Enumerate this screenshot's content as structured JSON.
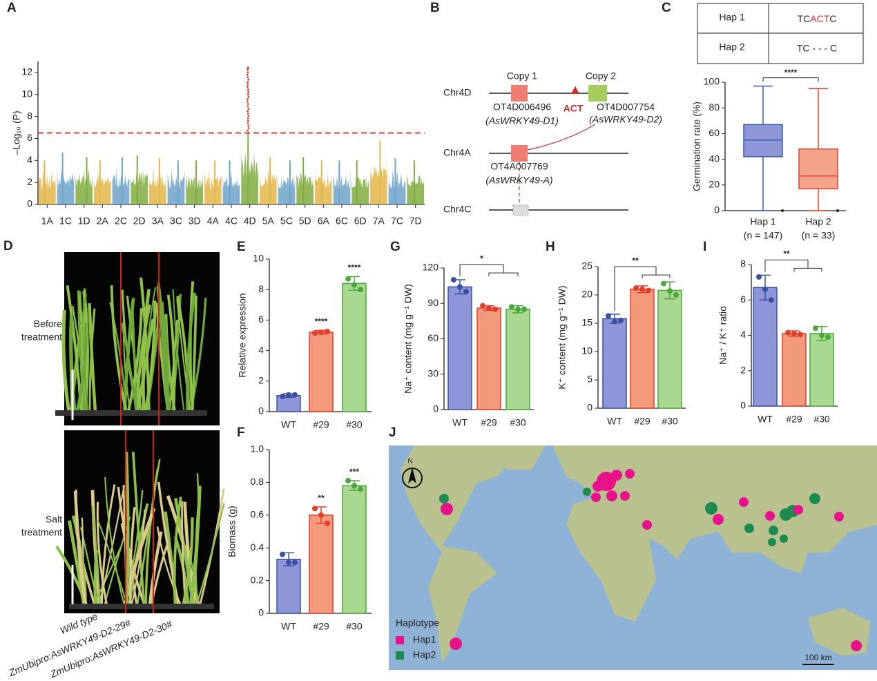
{
  "chart_data": [
    {
      "panel": "A",
      "type": "manhattan",
      "ylabel": "–Log₁₀ (P)",
      "categories": [
        "1A",
        "1C",
        "1D",
        "2A",
        "2C",
        "2D",
        "3A",
        "3C",
        "3D",
        "4A",
        "4C",
        "4D",
        "5A",
        "5C",
        "5D",
        "6A",
        "6C",
        "6D",
        "7A",
        "7C",
        "7D"
      ],
      "values": [
        4.0,
        4.7,
        4.3,
        4.0,
        4.3,
        4.5,
        4.2,
        4.0,
        4.0,
        4.0,
        4.0,
        12.4,
        4.3,
        4.0,
        4.3,
        4.0,
        4.0,
        4.0,
        5.8,
        4.2,
        4.0
      ],
      "colors": [
        "#e3b64a",
        "#6fa3c9",
        "#80ad3f"
      ],
      "threshold": 6.5,
      "threshold_color": "#d9402b",
      "ylim": [
        0,
        13
      ],
      "yticks": [
        0,
        2,
        4,
        6,
        8,
        10,
        12
      ]
    },
    {
      "panel": "C",
      "type": "box",
      "ylabel": "Germination rate (%)",
      "categories": [
        "Hap 1",
        "Hap 2"
      ],
      "n_labels": [
        "(n = 147)",
        "(n = 33)"
      ],
      "whisker_low": [
        0,
        0
      ],
      "q1": [
        42,
        17
      ],
      "median": [
        55,
        27
      ],
      "q3": [
        67,
        48
      ],
      "whisker_high": [
        97,
        95
      ],
      "outliers": [
        [
          0
        ],
        [
          0
        ]
      ],
      "colors": [
        "#8e96d8",
        "#f5a48c"
      ],
      "edge_colors": [
        "#3b5aa8",
        "#e2432f"
      ],
      "bracket": {
        "label": "****"
      },
      "ylim": [
        0,
        100
      ],
      "yticks": [
        0,
        20,
        40,
        60,
        80,
        100
      ]
    },
    {
      "panel": "E",
      "type": "bar",
      "ylabel": "Relative expression",
      "categories": [
        "WT",
        "#29",
        "#30"
      ],
      "values": [
        1.05,
        5.2,
        8.4
      ],
      "errors": [
        0.12,
        0.12,
        0.45
      ],
      "points": [
        [
          1.0,
          1.1,
          1.1
        ],
        [
          5.15,
          5.2,
          5.25
        ],
        [
          8.7,
          8.3,
          8.0
        ]
      ],
      "significance": [
        null,
        "****",
        "****"
      ],
      "colors": [
        "#8e96d8",
        "#f39a7c",
        "#a9d991"
      ],
      "edge_colors": [
        "#3b50a2",
        "#e23e2b",
        "#4aa83c"
      ],
      "ylim": [
        0,
        10
      ],
      "yticks": [
        0,
        2,
        4,
        6,
        8,
        10
      ]
    },
    {
      "panel": "F",
      "type": "bar",
      "ylabel": "Biomass (g)",
      "categories": [
        "WT",
        "#29",
        "#30"
      ],
      "values": [
        0.33,
        0.6,
        0.78
      ],
      "errors": [
        0.04,
        0.05,
        0.03
      ],
      "points": [
        [
          0.36,
          0.31,
          0.31
        ],
        [
          0.64,
          0.6,
          0.55
        ],
        [
          0.81,
          0.78,
          0.76
        ]
      ],
      "significance": [
        null,
        "**",
        "***"
      ],
      "colors": [
        "#8e96d8",
        "#f39a7c",
        "#a9d991"
      ],
      "edge_colors": [
        "#3b50a2",
        "#e23e2b",
        "#4aa83c"
      ],
      "ylim": [
        0,
        1
      ],
      "yticks": [
        0,
        0.2,
        0.4,
        0.6,
        0.8,
        {
          "value": 1,
          "label": "1.0"
        }
      ]
    },
    {
      "panel": "G",
      "type": "bar",
      "ylabel": "Na⁺ content (mg g⁻¹ DW)",
      "categories": [
        "WT",
        "#29",
        "#30"
      ],
      "values": [
        104,
        86,
        85
      ],
      "errors": [
        6,
        2,
        3
      ],
      "points": [
        [
          110,
          104,
          100
        ],
        [
          88,
          86,
          85
        ],
        [
          87,
          85,
          85
        ]
      ],
      "bracket": {
        "label": "*"
      },
      "colors": [
        "#8e96d8",
        "#f39a7c",
        "#a9d991"
      ],
      "edge_colors": [
        "#3b50a2",
        "#e23e2b",
        "#4aa83c"
      ],
      "ylim": [
        0,
        120
      ],
      "yticks": [
        0,
        30,
        60,
        90,
        120
      ]
    },
    {
      "panel": "H",
      "type": "bar",
      "ylabel": "K⁺ content (mg g⁻¹ DW)",
      "categories": [
        "WT",
        "#29",
        "#30"
      ],
      "values": [
        15.8,
        21,
        20.8
      ],
      "errors": [
        0.8,
        0.6,
        1.5
      ],
      "points": [
        [
          16.3,
          15.3,
          15.5
        ],
        [
          21.2,
          21,
          20.8
        ],
        [
          22,
          20.7,
          20
        ]
      ],
      "bracket": {
        "label": "**"
      },
      "colors": [
        "#8e96d8",
        "#f39a7c",
        "#a9d991"
      ],
      "edge_colors": [
        "#3b50a2",
        "#e23e2b",
        "#4aa83c"
      ],
      "ylim": [
        0,
        25
      ],
      "yticks": [
        0,
        5,
        10,
        15,
        20,
        25
      ]
    },
    {
      "panel": "I",
      "type": "bar",
      "ylabel": "Na⁺ / K⁺ ratio",
      "categories": [
        "WT",
        "#29",
        "#30"
      ],
      "values": [
        6.7,
        4.1,
        4.1
      ],
      "errors": [
        0.7,
        0.15,
        0.4
      ],
      "points": [
        [
          7.3,
          6.6,
          6.0
        ],
        [
          4.15,
          4.1,
          4.05
        ],
        [
          4.4,
          4.0,
          3.9
        ]
      ],
      "bracket": {
        "label": "**"
      },
      "colors": [
        "#8e96d8",
        "#f39a7c",
        "#a9d991"
      ],
      "edge_colors": [
        "#3b50a2",
        "#e23e2b",
        "#4aa83c"
      ],
      "ylim": [
        0,
        8
      ],
      "yticks": [
        0,
        2,
        4,
        6,
        8
      ]
    }
  ],
  "panel_b": {
    "panel": "B",
    "chromosomes": [
      "Chr4D",
      "Chr4A",
      "Chr4C"
    ],
    "copy_1": "Copy 1",
    "copy_2": "Copy 2",
    "insertion": "ACT",
    "genes": [
      {
        "id": "OT4D006496",
        "name": "(AsWRKY49-D1)"
      },
      {
        "id": "OT4D007754",
        "name": "(AsWRKY49-D2)"
      },
      {
        "id": "OT4A007769",
        "name": "(AsWRKY49-A)"
      }
    ]
  },
  "panel_c_table": {
    "rows": [
      [
        "Hap 1",
        [
          "TC",
          "ACT",
          "C"
        ]
      ],
      [
        "Hap 2",
        "TC - - - C"
      ]
    ]
  },
  "panel_d": {
    "panel": "D",
    "conditions": [
      [
        "Before",
        "treatment"
      ],
      [
        "Salt",
        "treatment"
      ]
    ],
    "lines": [
      "Wild type",
      "ZmUbipro:AsWRKY49-D2-29#",
      "ZmUbipro:AsWRKY49-D2-30#"
    ]
  },
  "panel_j": {
    "panel": "J",
    "north": "N",
    "legend_title": "Haplotype",
    "legend": [
      "Hap1",
      "Hap2"
    ],
    "scale": "100 km"
  }
}
